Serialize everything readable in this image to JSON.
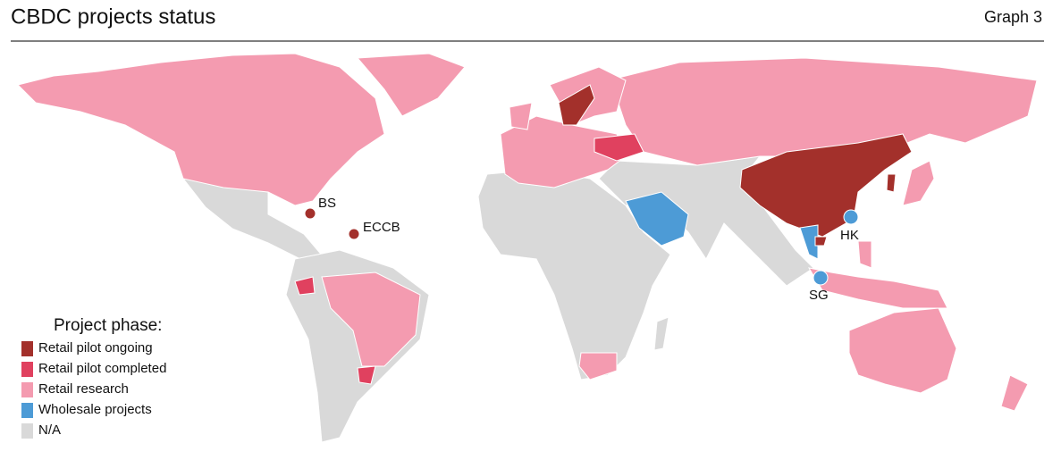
{
  "header": {
    "title": "CBDC projects status",
    "graph_label": "Graph 3"
  },
  "legend": {
    "title": "Project phase:",
    "items": [
      {
        "label": "Retail pilot ongoing",
        "color": "#a3302b"
      },
      {
        "label": "Retail pilot completed",
        "color": "#e0415f"
      },
      {
        "label": "Retail research",
        "color": "#f49bb0"
      },
      {
        "label": "Wholesale projects",
        "color": "#4d9bd6"
      },
      {
        "label": "N/A",
        "color": "#d9d9d9"
      }
    ]
  },
  "markers": [
    {
      "label": "BS"
    },
    {
      "label": "ECCB"
    },
    {
      "label": "HK"
    },
    {
      "label": "SG"
    }
  ]
}
